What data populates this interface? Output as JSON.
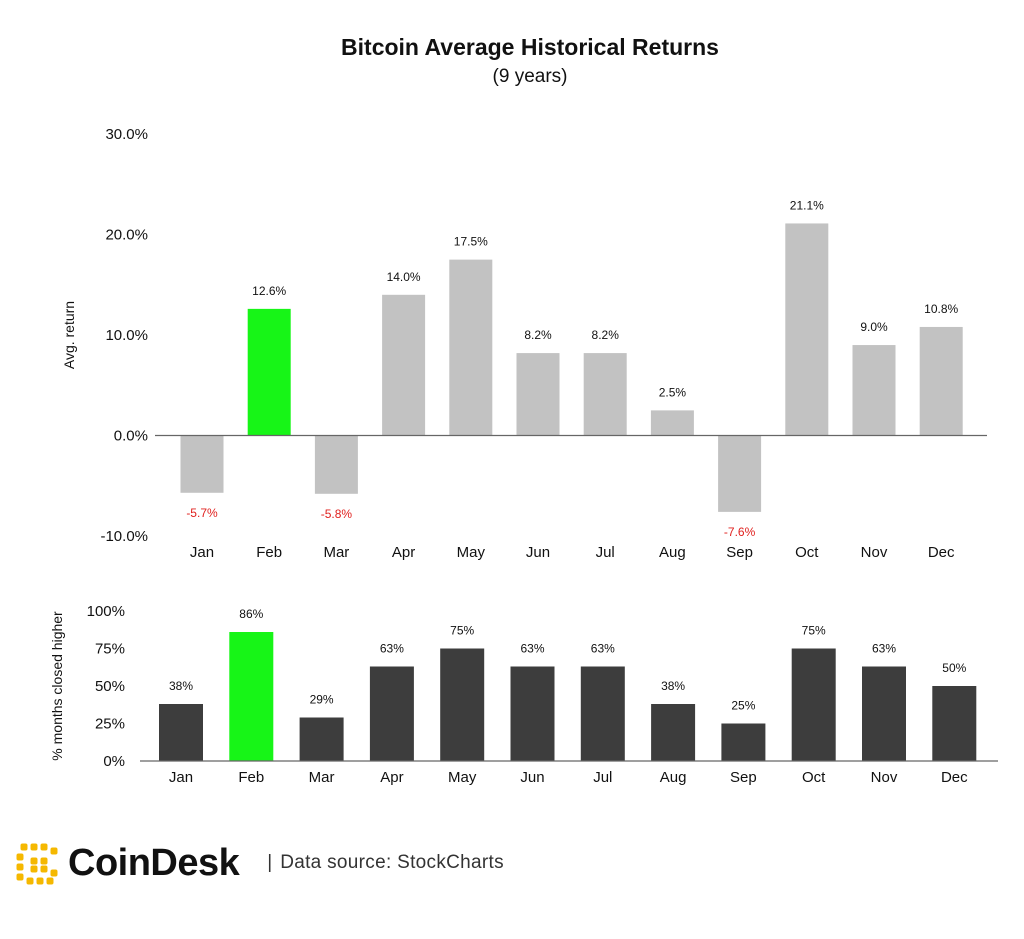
{
  "chart_title": "Bitcoin Average Historical Returns",
  "chart_subtitle": "(9 years)",
  "chart_data": [
    {
      "type": "bar",
      "categories": [
        "Jan",
        "Feb",
        "Mar",
        "Apr",
        "May",
        "Jun",
        "Jul",
        "Aug",
        "Sep",
        "Oct",
        "Nov",
        "Dec"
      ],
      "values": [
        -5.7,
        12.6,
        -5.8,
        14.0,
        17.5,
        8.2,
        8.2,
        2.5,
        -7.6,
        21.1,
        9.0,
        10.8
      ],
      "data_labels": [
        "-5.7%",
        "12.6%",
        "-5.8%",
        "14.0%",
        "17.5%",
        "8.2%",
        "8.2%",
        "2.5%",
        "-7.6%",
        "21.1%",
        "9.0%",
        "10.8%"
      ],
      "ylabel": "Avg. return",
      "ylim": [
        -10,
        30
      ],
      "yticks": [
        "30.0%",
        "20.0%",
        "10.0%",
        "0.0%",
        "-10.0%"
      ],
      "ytick_values": [
        30,
        20,
        10,
        0,
        -10
      ],
      "highlight_category": "Feb",
      "colors": {
        "bar": "#c2c2c2",
        "highlight": "#17f517",
        "negative_label": "#e0201e",
        "label": "#111111"
      },
      "grid": false
    },
    {
      "type": "bar",
      "categories": [
        "Jan",
        "Feb",
        "Mar",
        "Apr",
        "May",
        "Jun",
        "Jul",
        "Aug",
        "Sep",
        "Oct",
        "Nov",
        "Dec"
      ],
      "values": [
        38,
        86,
        29,
        63,
        75,
        63,
        63,
        38,
        25,
        75,
        63,
        50
      ],
      "data_labels": [
        "38%",
        "",
        "29%",
        "63%",
        "75%",
        "63%",
        "63%",
        "38%",
        "25%",
        "75%",
        "63%",
        "50%"
      ],
      "highlight_label": "86%",
      "ylabel": "% months closed higher",
      "ylim": [
        0,
        100
      ],
      "yticks": [
        "100%",
        "75%",
        "50%",
        "25%",
        "0%"
      ],
      "ytick_values": [
        100,
        75,
        50,
        25,
        0
      ],
      "highlight_category": "Feb",
      "colors": {
        "bar": "#3d3d3d",
        "highlight": "#17f517",
        "label": "#111111"
      },
      "grid": false
    }
  ],
  "footer": {
    "brand": "CoinDesk",
    "separator": "|",
    "source": "Data source: StockCharts",
    "logo_color": "#f5b800"
  }
}
